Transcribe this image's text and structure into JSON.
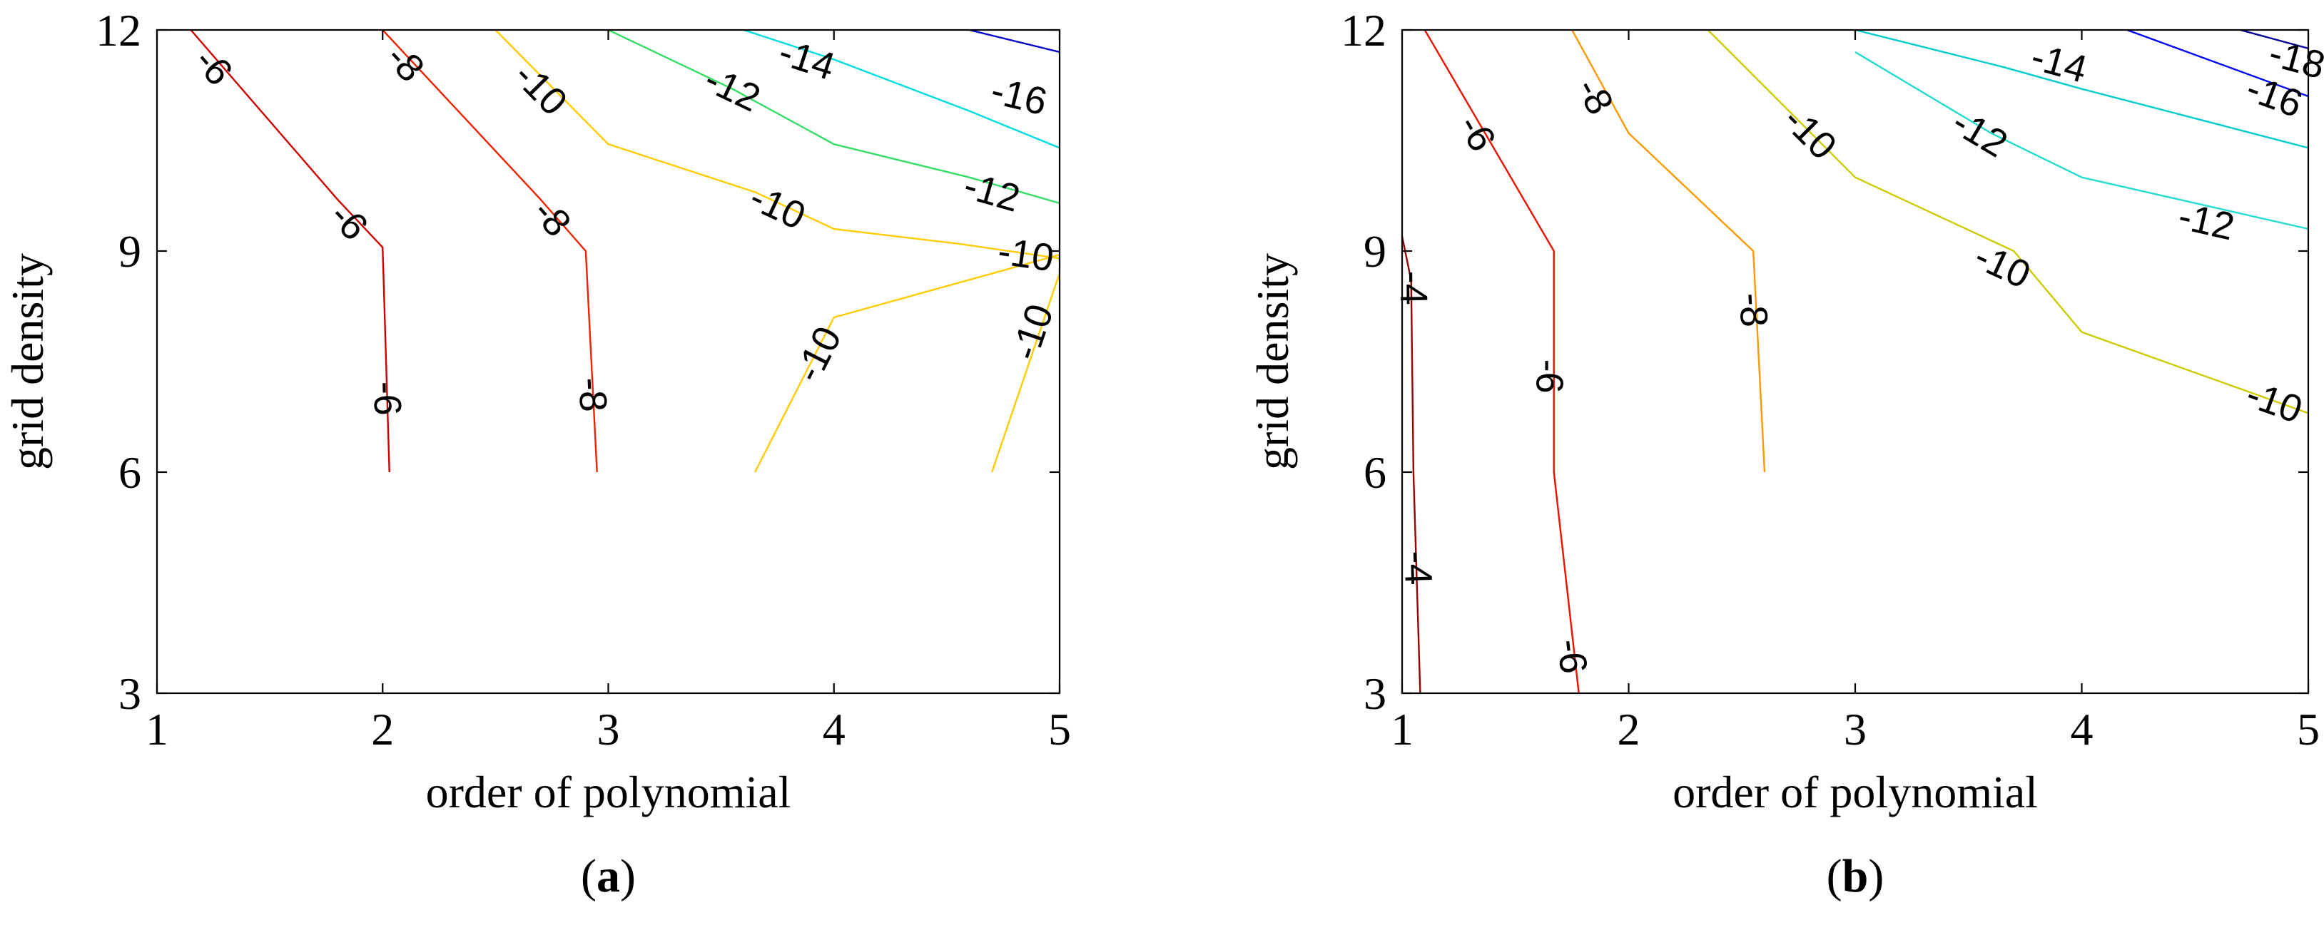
{
  "chart_data": [
    {
      "type": "contour",
      "panel_label": "a",
      "xlabel": "order of polynomial",
      "ylabel": "grid density",
      "xlim": [
        1,
        5
      ],
      "ylim": [
        3,
        12
      ],
      "xticks": [
        1,
        2,
        3,
        4,
        5
      ],
      "yticks": [
        3,
        6,
        9,
        12
      ],
      "grid": false,
      "levels": [
        {
          "level": -6,
          "color": "#cc0000",
          "points": [
            [
              1.15,
              12
            ],
            [
              1.8,
              9.7
            ],
            [
              2.0,
              9.05
            ],
            [
              2.03,
              6.0
            ]
          ],
          "labels": [
            {
              "text": "-6",
              "at": [
                1.25,
                11.5
              ]
            },
            {
              "text": "-6",
              "at": [
                1.85,
                9.4
              ]
            },
            {
              "text": "-6",
              "at": [
                2.02,
                7.0
              ]
            }
          ]
        },
        {
          "level": -8,
          "color": "#ee2200",
          "points": [
            [
              2.0,
              12
            ],
            [
              2.7,
              9.7
            ],
            [
              2.9,
              9.0
            ],
            [
              2.95,
              6.0
            ]
          ],
          "labels": [
            {
              "text": "-8",
              "at": [
                2.1,
                11.55
              ]
            },
            {
              "text": "-8",
              "at": [
                2.75,
                9.45
              ]
            },
            {
              "text": "-8",
              "at": [
                2.93,
                7.05
              ]
            }
          ]
        },
        {
          "level": -10,
          "color": "#ffcc00",
          "points": [
            [
              2.5,
              12
            ],
            [
              3.0,
              10.45
            ],
            [
              3.65,
              9.8
            ],
            [
              4.0,
              9.3
            ],
            [
              4.55,
              9.1
            ],
            [
              5.0,
              8.9
            ]
          ],
          "labels": [
            {
              "text": "-10",
              "at": [
                2.7,
                11.2
              ]
            },
            {
              "text": "-10",
              "at": [
                3.75,
                9.6
              ]
            },
            {
              "text": "-10",
              "at": [
                4.85,
                8.95
              ]
            }
          ]
        },
        {
          "level": -10,
          "color": "#ffcc00",
          "points": [
            [
              3.65,
              6.0
            ],
            [
              4.0,
              8.1
            ],
            [
              5.0,
              8.95
            ]
          ],
          "labels": [
            {
              "text": "-10",
              "at": [
                3.93,
                7.6
              ]
            }
          ]
        },
        {
          "level": -10,
          "color": "#ffcc00",
          "points": [
            [
              4.7,
              6.0
            ],
            [
              5.0,
              8.7
            ]
          ],
          "labels": [
            {
              "text": "-10",
              "at": [
                4.88,
                7.9
              ]
            }
          ]
        },
        {
          "level": -12,
          "color": "#33dd66",
          "points": [
            [
              3.0,
              12
            ],
            [
              3.55,
              11.2
            ],
            [
              4.0,
              10.45
            ],
            [
              4.6,
              10.0
            ],
            [
              5.0,
              9.65
            ]
          ],
          "labels": [
            {
              "text": "-12",
              "at": [
                3.55,
                11.2
              ]
            },
            {
              "text": "-12",
              "at": [
                4.7,
                9.8
              ]
            }
          ]
        },
        {
          "level": -14,
          "color": "#00dddd",
          "points": [
            [
              3.6,
              12
            ],
            [
              4.0,
              11.6
            ],
            [
              4.6,
              10.9
            ],
            [
              5.0,
              10.4
            ]
          ],
          "labels": [
            {
              "text": "-14",
              "at": [
                3.88,
                11.6
              ]
            }
          ]
        },
        {
          "level": -16,
          "color": "#0000cc",
          "points": [
            [
              4.6,
              12
            ],
            [
              5.0,
              11.7
            ]
          ],
          "labels": [
            {
              "text": "-16",
              "at": [
                4.82,
                11.1
              ]
            }
          ]
        }
      ]
    },
    {
      "type": "contour",
      "panel_label": "b",
      "xlabel": "order of polynomial",
      "ylabel": "grid density",
      "xlim": [
        1,
        5
      ],
      "ylim": [
        3,
        12
      ],
      "xticks": [
        1,
        2,
        3,
        4,
        5
      ],
      "yticks": [
        3,
        6,
        9,
        12
      ],
      "grid": false,
      "levels": [
        {
          "level": -4,
          "color": "#990000",
          "points": [
            [
              1.0,
              9.2
            ],
            [
              1.04,
              8.6
            ],
            [
              1.05,
              6.0
            ],
            [
              1.08,
              3.0
            ]
          ],
          "labels": [
            {
              "text": "-4",
              "at": [
                1.05,
                8.5
              ]
            },
            {
              "text": "-4",
              "at": [
                1.07,
                4.7
              ]
            }
          ]
        },
        {
          "level": -6,
          "color": "#ee1100",
          "points": [
            [
              1.1,
              12
            ],
            [
              1.67,
              9.0
            ],
            [
              1.67,
              6.0
            ],
            [
              1.78,
              3.0
            ]
          ],
          "labels": [
            {
              "text": "-6",
              "at": [
                1.33,
                10.6
              ]
            },
            {
              "text": "-6",
              "at": [
                1.65,
                7.3
              ]
            },
            {
              "text": "-6",
              "at": [
                1.75,
                3.5
              ]
            }
          ]
        },
        {
          "level": -8,
          "color": "#ff9900",
          "points": [
            [
              1.75,
              12
            ],
            [
              2.0,
              10.6
            ],
            [
              2.55,
              9.0
            ],
            [
              2.6,
              6.0
            ]
          ],
          "labels": [
            {
              "text": "-8",
              "at": [
                1.85,
                11.1
              ]
            },
            {
              "text": "-8",
              "at": [
                2.55,
                8.2
              ]
            }
          ]
        },
        {
          "level": -10,
          "color": "#cccc00",
          "points": [
            [
              2.35,
              12
            ],
            [
              3.0,
              10.0
            ],
            [
              3.7,
              9.0
            ],
            [
              4.0,
              7.9
            ],
            [
              5.0,
              6.8
            ]
          ],
          "labels": [
            {
              "text": "-10",
              "at": [
                2.8,
                10.6
              ]
            },
            {
              "text": "-10",
              "at": [
                3.65,
                8.8
              ]
            },
            {
              "text": "-10",
              "at": [
                4.85,
                6.95
              ]
            }
          ]
        },
        {
          "level": -12,
          "color": "#22ddcc",
          "points": [
            [
              3.0,
              11.7
            ],
            [
              3.6,
              10.6
            ],
            [
              4.0,
              10.0
            ],
            [
              5.0,
              9.3
            ]
          ],
          "labels": [
            {
              "text": "-12",
              "at": [
                3.55,
                10.6
              ]
            },
            {
              "text": "-12",
              "at": [
                4.55,
                9.4
              ]
            }
          ]
        },
        {
          "level": -14,
          "color": "#00cccc",
          "points": [
            [
              3.0,
              12
            ],
            [
              3.65,
              11.5
            ],
            [
              4.0,
              11.2
            ],
            [
              5.0,
              10.4
            ]
          ],
          "labels": [
            {
              "text": "-14",
              "at": [
                3.9,
                11.55
              ]
            }
          ]
        },
        {
          "level": -16,
          "color": "#0000ff",
          "points": [
            [
              4.2,
              12
            ],
            [
              5.0,
              11.1
            ]
          ],
          "labels": [
            {
              "text": "-16",
              "at": [
                4.85,
                11.1
              ]
            }
          ]
        },
        {
          "level": -18,
          "color": "#000099",
          "points": [
            [
              4.7,
              12
            ],
            [
              5.0,
              11.75
            ]
          ],
          "labels": [
            {
              "text": "-18",
              "at": [
                4.95,
                11.6
              ]
            }
          ]
        }
      ]
    }
  ]
}
